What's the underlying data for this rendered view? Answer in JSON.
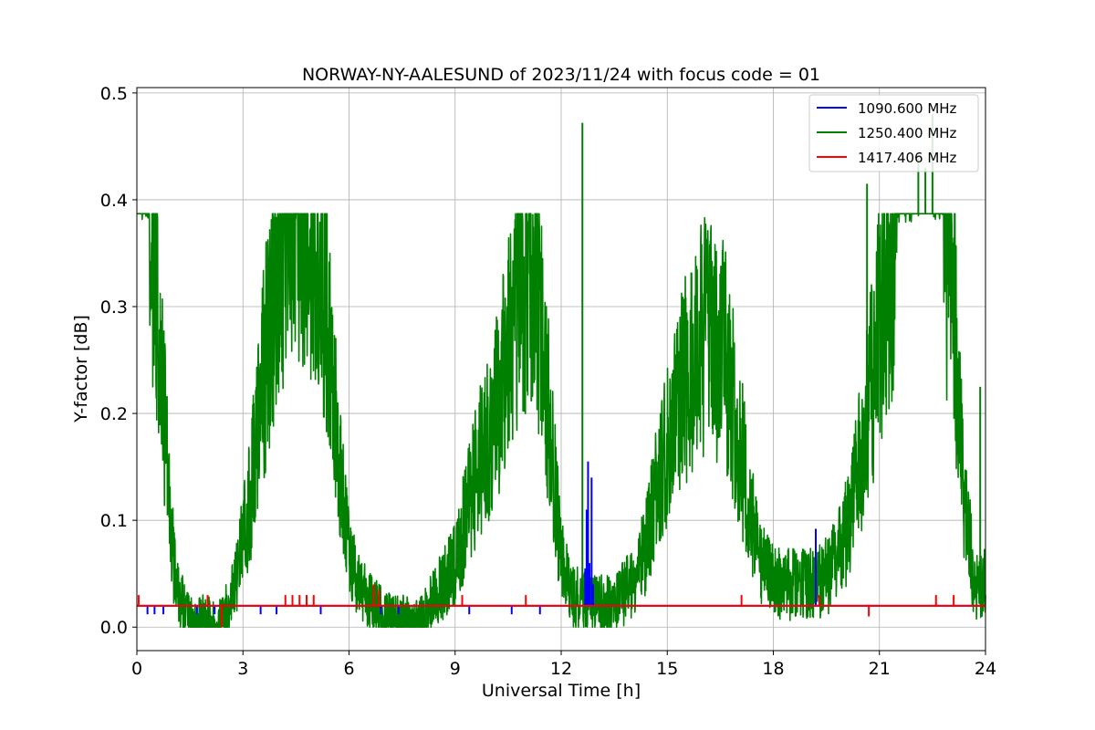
{
  "chart_data": {
    "type": "line",
    "title": "NORWAY-NY-AALESUND of 2023/11/24 with focus code = 01",
    "xlabel": "Universal Time [h]",
    "ylabel": "Y-factor [dB]",
    "xlim": [
      0,
      24
    ],
    "ylim": [
      -0.022,
      0.505
    ],
    "xticks": [
      0,
      3,
      6,
      9,
      12,
      15,
      18,
      21,
      24
    ],
    "xtick_labels": [
      "0",
      "3",
      "6",
      "9",
      "12",
      "15",
      "18",
      "21",
      "24"
    ],
    "yticks": [
      0.0,
      0.1,
      0.2,
      0.3,
      0.4,
      0.5
    ],
    "ytick_labels": [
      "0.0",
      "0.1",
      "0.2",
      "0.3",
      "0.4",
      "0.5"
    ],
    "grid": true,
    "legend_position": "top-right",
    "series": [
      {
        "name": "1090.600 MHz",
        "color": "#0000ff",
        "baseline": 0.02,
        "points": [
          [
            0.3,
            0.012
          ],
          [
            0.5,
            0.012
          ],
          [
            0.75,
            0.012
          ],
          [
            1.7,
            0.012
          ],
          [
            2.2,
            0.012
          ],
          [
            3.5,
            0.012
          ],
          [
            3.95,
            0.012
          ],
          [
            5.2,
            0.012
          ],
          [
            6.9,
            0.012
          ],
          [
            7.4,
            0.012
          ],
          [
            9.4,
            0.012
          ],
          [
            10.6,
            0.012
          ],
          [
            11.4,
            0.012
          ],
          [
            12.68,
            0.055
          ],
          [
            12.72,
            0.11
          ],
          [
            12.76,
            0.155
          ],
          [
            12.8,
            0.06
          ],
          [
            12.86,
            0.14
          ],
          [
            12.9,
            0.04
          ],
          [
            19.2,
            0.092
          ]
        ]
      },
      {
        "name": "1250.400 MHz",
        "color": "#008000",
        "envelope": [
          [
            0.0,
            0.387
          ],
          [
            0.35,
            0.387
          ],
          [
            0.5,
            0.35
          ],
          [
            0.7,
            0.25
          ],
          [
            0.9,
            0.12
          ],
          [
            1.1,
            0.04
          ],
          [
            1.4,
            0.01
          ],
          [
            2.4,
            0.005
          ],
          [
            2.8,
            0.04
          ],
          [
            3.2,
            0.12
          ],
          [
            3.6,
            0.24
          ],
          [
            4.0,
            0.36
          ],
          [
            4.5,
            0.387
          ],
          [
            5.0,
            0.375
          ],
          [
            5.4,
            0.28
          ],
          [
            5.8,
            0.12
          ],
          [
            6.2,
            0.04
          ],
          [
            7.0,
            0.01
          ],
          [
            8.0,
            0.005
          ],
          [
            9.0,
            0.06
          ],
          [
            9.6,
            0.14
          ],
          [
            10.3,
            0.22
          ],
          [
            10.9,
            0.34
          ],
          [
            11.3,
            0.32
          ],
          [
            11.7,
            0.18
          ],
          [
            12.0,
            0.06
          ],
          [
            12.3,
            0.03
          ],
          [
            13.5,
            0.02
          ],
          [
            14.2,
            0.05
          ],
          [
            14.8,
            0.14
          ],
          [
            15.4,
            0.22
          ],
          [
            16.0,
            0.27
          ],
          [
            16.6,
            0.26
          ],
          [
            17.2,
            0.14
          ],
          [
            17.6,
            0.06
          ],
          [
            18.2,
            0.04
          ],
          [
            19.2,
            0.04
          ],
          [
            19.6,
            0.05
          ],
          [
            20.0,
            0.08
          ],
          [
            20.5,
            0.16
          ],
          [
            21.0,
            0.28
          ],
          [
            21.5,
            0.387
          ],
          [
            22.8,
            0.387
          ],
          [
            23.1,
            0.3
          ],
          [
            23.4,
            0.12
          ],
          [
            23.7,
            0.04
          ],
          [
            24.0,
            0.04
          ]
        ],
        "spikes": [
          [
            12.6,
            0.472
          ],
          [
            20.65,
            0.415
          ],
          [
            22.1,
            0.44
          ],
          [
            22.3,
            0.43
          ],
          [
            22.5,
            0.48
          ],
          [
            23.85,
            0.225
          ]
        ]
      },
      {
        "name": "1417.406 MHz",
        "color": "#ff0000",
        "baseline": 0.02,
        "points": [
          [
            0.05,
            0.03
          ],
          [
            2.0,
            0.03
          ],
          [
            2.4,
            0.0
          ],
          [
            4.2,
            0.03
          ],
          [
            4.4,
            0.03
          ],
          [
            4.6,
            0.03
          ],
          [
            4.8,
            0.03
          ],
          [
            5.0,
            0.03
          ],
          [
            6.7,
            0.04
          ],
          [
            6.85,
            0.035
          ],
          [
            9.2,
            0.03
          ],
          [
            11.0,
            0.03
          ],
          [
            17.1,
            0.03
          ],
          [
            19.3,
            0.03
          ],
          [
            20.7,
            0.01
          ],
          [
            22.6,
            0.03
          ],
          [
            23.1,
            0.03
          ]
        ]
      }
    ]
  }
}
